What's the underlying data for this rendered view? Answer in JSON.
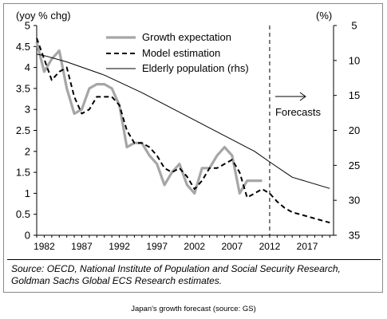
{
  "chart_data": {
    "type": "line",
    "left_axis_label": "(yoy % chg)",
    "right_axis_label": "(%)",
    "left_ticks": [
      "5",
      "4.5",
      "4",
      "3.5",
      "3",
      "2.5",
      "2",
      "1.5",
      "1",
      "0.5",
      "0"
    ],
    "right_ticks": [
      "5",
      "10",
      "15",
      "20",
      "25",
      "30",
      "35"
    ],
    "x_ticks": [
      "1982",
      "1987",
      "1992",
      "1997",
      "2002",
      "2007",
      "2012",
      "2017"
    ],
    "ylim_left": [
      0,
      5
    ],
    "ylim_right": [
      35,
      5
    ],
    "xlim": [
      1981,
      2020.5
    ],
    "forecast_start": 2012,
    "forecast_label": "Forecasts",
    "series": [
      {
        "name": "Growth expectation",
        "axis": "left",
        "color": "#a6a6a6",
        "style": "solid-thick",
        "x": [
          1981,
          1982,
          1983,
          1984,
          1985,
          1986,
          1987,
          1988,
          1989,
          1990,
          1991,
          1992,
          1993,
          1994,
          1995,
          1996,
          1997,
          1998,
          1999,
          2000,
          2001,
          2002,
          2003,
          2004,
          2005,
          2006,
          2007,
          2008,
          2009,
          2010,
          2011
        ],
        "values": [
          4.6,
          3.9,
          4.2,
          4.4,
          3.5,
          2.9,
          3.0,
          3.5,
          3.6,
          3.6,
          3.5,
          3.1,
          2.1,
          2.2,
          2.2,
          1.9,
          1.7,
          1.2,
          1.5,
          1.7,
          1.2,
          1.0,
          1.6,
          1.6,
          1.9,
          2.1,
          1.9,
          1.0,
          1.3,
          1.3,
          1.3
        ]
      },
      {
        "name": "Model estimation",
        "axis": "left",
        "color": "#000000",
        "style": "dashed",
        "x": [
          1981,
          1982,
          1983,
          1984,
          1985,
          1986,
          1987,
          1988,
          1989,
          1990,
          1991,
          1992,
          1993,
          1994,
          1995,
          1996,
          1997,
          1998,
          1999,
          2000,
          2001,
          2002,
          2003,
          2004,
          2005,
          2006,
          2007,
          2008,
          2009,
          2010,
          2011,
          2012,
          2013,
          2014,
          2015,
          2016,
          2017,
          2018,
          2019,
          2020
        ],
        "values": [
          4.7,
          4.2,
          3.7,
          3.9,
          4.0,
          3.3,
          2.9,
          3.0,
          3.3,
          3.3,
          3.3,
          3.1,
          2.5,
          2.2,
          2.2,
          2.1,
          1.9,
          1.6,
          1.5,
          1.6,
          1.4,
          1.1,
          1.3,
          1.6,
          1.6,
          1.7,
          1.8,
          1.5,
          0.9,
          1.0,
          1.1,
          1.0,
          0.8,
          0.65,
          0.55,
          0.5,
          0.45,
          0.4,
          0.35,
          0.3
        ]
      },
      {
        "name": "Elderly population (rhs)",
        "axis": "right",
        "color": "#000000",
        "style": "solid-thin",
        "x": [
          1981,
          1982,
          1985,
          1990,
          1995,
          2000,
          2005,
          2010,
          2012,
          2015,
          2020
        ],
        "values": [
          9.1,
          9.3,
          10.2,
          12.1,
          14.6,
          17.4,
          20.2,
          23.0,
          24.5,
          26.7,
          28.3
        ]
      }
    ]
  },
  "source": "Source: OECD, National Institute of Population and Social Security Research, Goldman Sachs Global ECS Research estimates.",
  "caption": "Japan's growth forecast (source: GS)"
}
